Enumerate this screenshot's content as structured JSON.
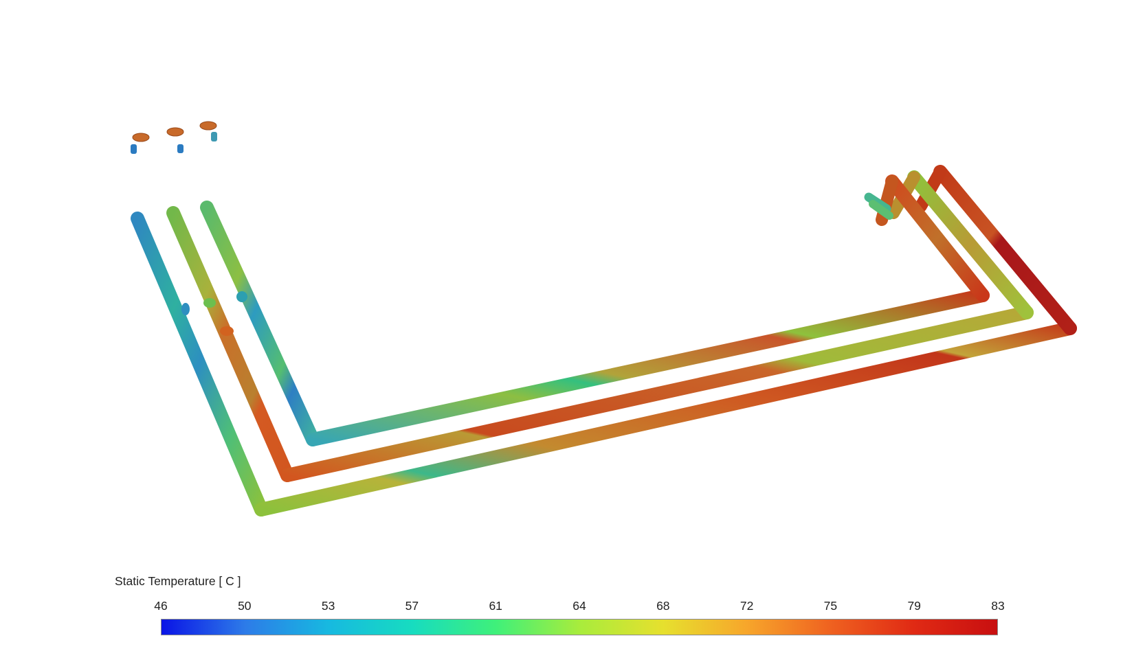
{
  "legend": {
    "title": "Static Temperature [ C ]",
    "ticks": [
      "46",
      "50",
      "53",
      "57",
      "61",
      "64",
      "68",
      "72",
      "75",
      "79",
      "83"
    ],
    "colormap": [
      "#0a14e6",
      "#2d7be8",
      "#17b9e0",
      "#17dcc0",
      "#3ff07a",
      "#a8ec3c",
      "#e6e02e",
      "#f7a62b",
      "#ef6220",
      "#e02a14",
      "#c80f10"
    ]
  },
  "pipes": [
    {
      "id": "outer",
      "segments": [
        {
          "from": 0,
          "to": 0.1,
          "colors": [
            "#ff7a2a",
            "#d6521c"
          ]
        },
        {
          "from": 0.1,
          "to": 0.34,
          "colors": [
            "#88c43a",
            "#2fb6a5",
            "#1f87c9",
            "#3a70c8"
          ]
        },
        {
          "from": 0.34,
          "to": 0.52,
          "colors": [
            "#2a9bc0",
            "#4cc37a",
            "#a9c83c"
          ]
        },
        {
          "from": 0.52,
          "to": 1.0,
          "colors": [
            "#c9662a",
            "#d2501f",
            "#c43a18",
            "#b83316"
          ]
        }
      ]
    }
  ]
}
